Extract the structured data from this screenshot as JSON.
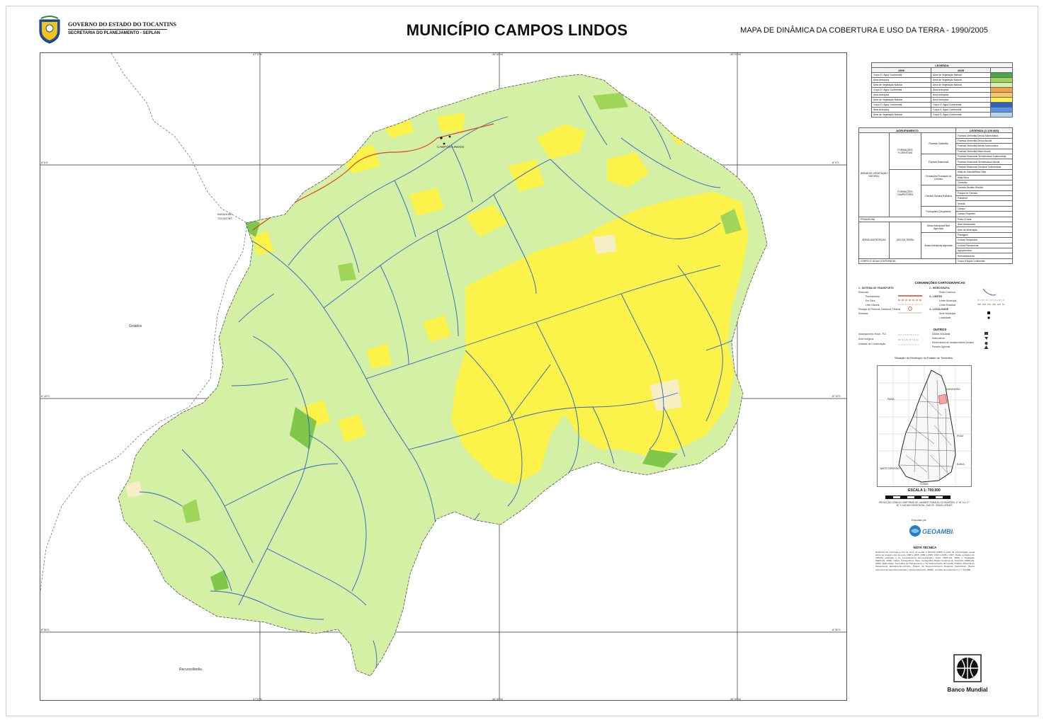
{
  "header": {
    "gov_line1": "GOVERNO DO ESTADO DO TOCANTINS",
    "gov_line2": "SECRETARIA DO PLANEJAMENTO - SEPLAN",
    "title": "MUNICÍPIO CAMPOS LINDOS",
    "subtitle": "MAPA DE DINÂMICA DA COBERTURA E USO DA TERRA - 1990/2005"
  },
  "map": {
    "ticks_top": [
      "47°0'W",
      "46°40'W",
      "46°20'W"
    ],
    "ticks_bottom": [
      "47°0'W",
      "46°40'W",
      "46°20'W"
    ],
    "ticks_left": [
      "8°0'S",
      "8°15'S",
      "8°30'S"
    ],
    "ticks_right": [
      "8°0'S",
      "8°15'S",
      "8°30'S"
    ],
    "places": {
      "campos_lindos": "CAMPOS LINDOS",
      "goiatins": "Goiatins",
      "recursolandia": "Recursolândia",
      "maranhao": "MARANHÃO",
      "tocantins": "TOCANTINS"
    },
    "colors": {
      "vegetation": "#d4f0a4",
      "agriculture": "#fbf24a",
      "dense_veg": "#7fc64a",
      "river": "#2a62c9",
      "road": "#d8451e",
      "light": "#f6efc5"
    }
  },
  "legend": {
    "title": "LEGENDA",
    "col1": "1990",
    "col2": "2005",
    "col3": "",
    "rows": [
      {
        "a": "Corpo D' Água Continental",
        "b": "Área de Vegetação Natural",
        "color": "#4aa64a"
      },
      {
        "a": "Área Antrópica",
        "b": "Área de Vegetação Natural",
        "color": "#9fd65a"
      },
      {
        "a": "Área de Vegetação Natural",
        "b": "Área de Vegetação Natural",
        "color": "#d4f0a4"
      },
      {
        "a": "Corpo D' Água Continental",
        "b": "Área Antrópica",
        "color": "#f0a24a"
      },
      {
        "a": "Área Antrópica",
        "b": "Área Antrópica",
        "color": "#f5c66a"
      },
      {
        "a": "Área de Vegetação Natural",
        "b": "Área Antrópica",
        "color": "#fbf24a"
      },
      {
        "a": "Corpo D' Água Continental",
        "b": "Corpo D' Água Continental",
        "color": "#2a62c9"
      },
      {
        "a": "Área Antrópica",
        "b": "Corpo D' Água Continental",
        "color": "#5d92e0"
      },
      {
        "a": "Área de Vegetação Natural",
        "b": "Corpo D' Água Continental",
        "color": "#b9d3f3"
      }
    ]
  },
  "agrupamento": {
    "head1": "AGRUPAMENTO",
    "head2": "LEGENDA (1:100.000)",
    "group1": "ÁREAS DE VEGETAÇÃO NATURAL",
    "sub1": "FORMAÇÕES FLORESTAIS",
    "sub2": "FORMAÇÕES CAMPESTRES",
    "sub3a": "Floresta Ombrófila",
    "sub3b": "Floresta Estacional",
    "sub3c": "Formações Florestais do Cerrado",
    "sub3d": "Cerrado Savana Estépica",
    "sub3e": "Formações Campestres",
    "group2": "PRAIA/DUNA",
    "group3": "ÁREAS ANTRÓPICAS",
    "sub4": "USO DA TERRA",
    "sub5a": "Áreas Antrópicas Não Agrícolas",
    "sub5b": "Áreas Antrópicas Agrícolas",
    "group4": "CORPO D' ÁGUA CONTINENTAL",
    "items": [
      "Floresta Ombrófila Densa Submontana",
      "Floresta Ombrófila Densa Aluvial",
      "Floresta Ombrófila Aberta Submontana",
      "Floresta Ombrófila Mista Aluvial",
      "Floresta Estacional Semidecidual Submontana",
      "Floresta Estacional Semidecidual Aluvial",
      "Floresta Estacional Decidual Submontana",
      "Mata de Galeria/Mata Ciliar",
      "Mata Seca",
      "Cerradão",
      "Cerrado Sentido Restrito",
      "Parque de Cerrado",
      "Palmeiral",
      "Vereda",
      "Campo",
      "Campo Rupestre",
      "Praia e Duna",
      "Área Urbanizada",
      "Área de Mineração",
      "Pastagem",
      "Cultura Temporária",
      "Cultura Permanente",
      "Agropecuária",
      "Reflorestamento",
      "Corpo D'Água Continental"
    ]
  },
  "conventions": {
    "title": "CONVENÇÕES CARTOGRÁFICAS",
    "left_head": "1 - SISTEMA DE TRANSPORTE",
    "left_items": [
      "Rodovias",
      "Pavimentada",
      "Em Obra",
      "Leito Natural",
      "Pedágio de Rodovia, Estadual, Federal",
      "Estradas"
    ],
    "right_head": "2 - HIDROGRAFIA",
    "right_items": [
      "Rede Contínua",
      "3 - LIMITES",
      "Limite Municipal",
      "Limite Estadual",
      "4 - LOCALIDADE",
      "Sede Municipal",
      "Localidade"
    ],
    "others_title": "OUTROS",
    "others_left": [
      "Assentamento Rural - P.A",
      "Área Indígena",
      "Unidade de Conservação"
    ],
    "others_right": [
      "Distrito Industrial",
      "Hidrovia/via",
      "Reservatório de Abastecimento Urbano",
      "Posseio Agrícola"
    ]
  },
  "inset": {
    "title": "Situação do Município no Estado do Tocantins",
    "labels": [
      "MARANHÃO",
      "PARÁ",
      "PIAUÍ",
      "MATO GROSSO",
      "BAHIA",
      "GOIÁS"
    ]
  },
  "scale": {
    "label": "ESCALA 1: 700.000",
    "projection": "PROJEÇÃO CÔNICA CONFORME DE LAMBERT PARALELOS PADRÕES: 6° 30' S e 17° 30' S DATUM HORIZONTAL: SAD 69 - MINAS GERAIS"
  },
  "executor": {
    "pre": "Executado por:",
    "name": "GEOAMBIENTE"
  },
  "nota": {
    "title": "NOTA TÉCNICA",
    "body": "Dinâmica da cobertura e uso da terra na escala 1:100.000 (2005) a partir da interpretação visual sobre as imagens dos anos de 1990 e 2005, 1990 a 2005, 1990 a 2005 e 2007. Dados extraídos do trabalho realizado e do Levantamento Geomorfológico, Solos (SEPLAN, 2006) e Vegetação (SEPLAN, 2006). Dados Cartográficos: Base Cartográfica Digital Contínua do Tocantins (SEPLAN, 2006). Elaboração: Secretaria do Planejamento e da Modernização da Gestão Pública, Diretoria de Zoneamento Ecológico-Econômico, Projeto de Desenvolvimento Regional Sustentável, Banco Internacional para Reconstrução e Desenvolvimento (BIRD), contrato de empréstimo nº 7.144-BR."
  },
  "sponsor": {
    "name": "Banco Mundial"
  }
}
